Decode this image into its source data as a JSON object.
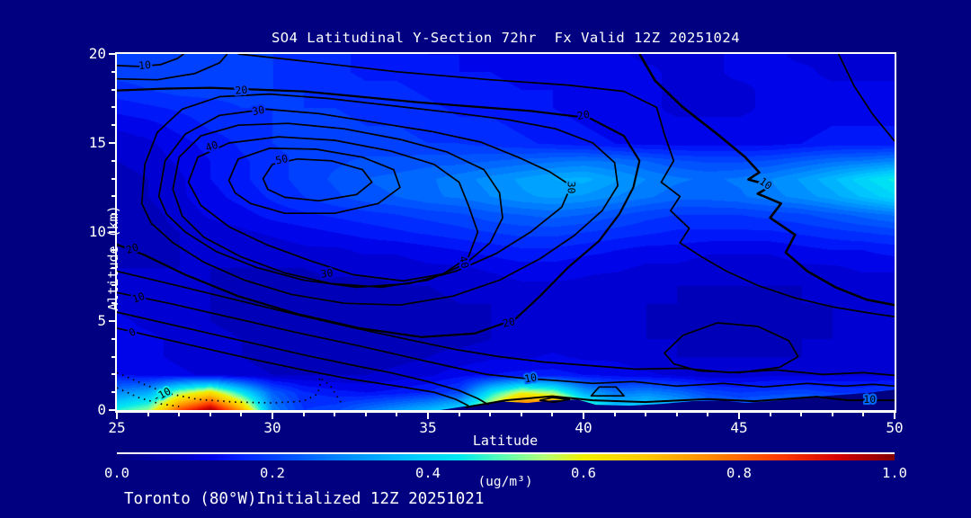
{
  "window": {
    "background": "#000080",
    "text_color": "#ffffff"
  },
  "header": {
    "title": "SO4 Latitudinal Y-Section 72hr  Fx Valid 12Z 20251024"
  },
  "footer": {
    "text": "Toronto (80°W)Initialized 12Z 20251021"
  },
  "axes": {
    "x": {
      "label": "Latitude",
      "ticks": [
        "25",
        "30",
        "35",
        "40",
        "45",
        "50"
      ],
      "min": 25,
      "max": 50,
      "minor_step": 1
    },
    "y": {
      "label": "Altitude (km)",
      "ticks": [
        "0",
        "5",
        "10",
        "15",
        "20"
      ],
      "min": 0,
      "max": 20,
      "minor_step": 1
    }
  },
  "colorbar": {
    "ticks": [
      "0.0",
      "0.2",
      "0.4",
      "0.6",
      "0.8",
      "1.0"
    ],
    "min": 0.0,
    "max": 1.0,
    "units_label": "(ug/m³)",
    "stops": [
      [
        0.0,
        "#000082"
      ],
      [
        0.07,
        "#0000b4"
      ],
      [
        0.12,
        "#0000e6"
      ],
      [
        0.16,
        "#0020ff"
      ],
      [
        0.22,
        "#0050ff"
      ],
      [
        0.3,
        "#0090ff"
      ],
      [
        0.38,
        "#00c8ff"
      ],
      [
        0.44,
        "#00e8f0"
      ],
      [
        0.5,
        "#60ffb0"
      ],
      [
        0.55,
        "#b4ff78"
      ],
      [
        0.6,
        "#f0f000"
      ],
      [
        0.68,
        "#ffc800"
      ],
      [
        0.76,
        "#ff8c00"
      ],
      [
        0.85,
        "#ff3c00"
      ],
      [
        0.93,
        "#d20000"
      ],
      [
        1.0,
        "#820000"
      ]
    ]
  },
  "contour_labels": [
    {
      "text": "10",
      "lat": 25.9,
      "alt": 19.35,
      "rot": -5
    },
    {
      "text": "20",
      "lat": 29.0,
      "alt": 17.95,
      "rot": -5
    },
    {
      "text": "30",
      "lat": 29.55,
      "alt": 16.8,
      "rot": -12
    },
    {
      "text": "40",
      "lat": 28.05,
      "alt": 14.8,
      "rot": -18
    },
    {
      "text": "50",
      "lat": 30.3,
      "alt": 14.05,
      "rot": -12
    },
    {
      "text": "20",
      "lat": 40.0,
      "alt": 16.55,
      "rot": -10
    },
    {
      "text": "30",
      "lat": 39.6,
      "alt": 12.5,
      "rot": 90
    },
    {
      "text": "10",
      "lat": 45.85,
      "alt": 12.7,
      "rot": 35
    },
    {
      "text": "20",
      "lat": 25.5,
      "alt": 9.05,
      "rot": -18
    },
    {
      "text": "10",
      "lat": 25.7,
      "alt": 6.3,
      "rot": -20
    },
    {
      "text": "0",
      "lat": 25.5,
      "alt": 4.35,
      "rot": -25
    },
    {
      "text": "-10",
      "lat": 26.45,
      "alt": 0.85,
      "rot": -28
    },
    {
      "text": "30",
      "lat": 31.75,
      "alt": 7.65,
      "rot": -8
    },
    {
      "text": "40",
      "lat": 36.15,
      "alt": 8.3,
      "rot": 78
    },
    {
      "text": "20",
      "lat": 37.6,
      "alt": 4.9,
      "rot": -12
    },
    {
      "text": "10",
      "lat": 38.3,
      "alt": 1.78,
      "rot": -10
    },
    {
      "text": "10",
      "lat": 49.2,
      "alt": 0.58,
      "rot": 0
    }
  ],
  "chart_data": {
    "type": "heatmap",
    "title": "SO4 Latitudinal Y-Section 72hr  Fx Valid 12Z 20251024",
    "xlabel": "Latitude",
    "ylabel": "Altitude (km)",
    "xlim": [
      25,
      50
    ],
    "ylim": [
      0,
      20
    ],
    "colorbar_range": [
      0.0,
      1.0
    ],
    "colorbar_units": "(ug/m³)",
    "contours": {
      "interval": 5,
      "labeled_levels": [
        -10,
        0,
        10,
        20,
        30,
        40,
        50
      ],
      "negative_linestyle": "dotted",
      "upper_maximum": {
        "lat": 31,
        "alt_km": 13,
        "peak_level": 50
      },
      "surface_hotspots": [
        {
          "lat_range": [
            26.5,
            29.5
          ],
          "alt_km_range": [
            0,
            1.5
          ],
          "peak_value": 1.0
        },
        {
          "lat_range": [
            37,
            40
          ],
          "alt_km_range": [
            0,
            1
          ],
          "peak_value": 0.95
        }
      ]
    },
    "grid": {
      "lat_start": 25,
      "lat_step": 1,
      "n_lat": 26,
      "alt_top_km": 20,
      "alt_step_km": -1,
      "n_alt": 21,
      "note": "approximate fill values (ug/m3) read from colors, rows top (20 km) to bottom (0 km)",
      "values_top_to_bottom": [
        [
          0.2,
          0.2,
          0.21,
          0.21,
          0.2,
          0.2,
          0.19,
          0.18,
          0.17,
          0.16,
          0.15,
          0.15,
          0.14,
          0.14,
          0.13,
          0.13,
          0.13,
          0.12,
          0.12,
          0.12,
          0.13,
          0.13,
          0.12,
          0.12,
          0.12,
          0.12
        ],
        [
          0.21,
          0.21,
          0.22,
          0.22,
          0.21,
          0.2,
          0.19,
          0.18,
          0.17,
          0.17,
          0.16,
          0.15,
          0.15,
          0.14,
          0.14,
          0.13,
          0.13,
          0.13,
          0.12,
          0.12,
          0.13,
          0.13,
          0.13,
          0.12,
          0.12,
          0.12
        ],
        [
          0.19,
          0.2,
          0.21,
          0.21,
          0.21,
          0.2,
          0.2,
          0.19,
          0.18,
          0.18,
          0.17,
          0.16,
          0.16,
          0.15,
          0.15,
          0.14,
          0.13,
          0.13,
          0.12,
          0.12,
          0.12,
          0.13,
          0.13,
          0.13,
          0.13,
          0.13
        ],
        [
          0.16,
          0.17,
          0.18,
          0.19,
          0.2,
          0.2,
          0.2,
          0.2,
          0.19,
          0.19,
          0.18,
          0.17,
          0.17,
          0.16,
          0.15,
          0.14,
          0.13,
          0.13,
          0.12,
          0.12,
          0.12,
          0.13,
          0.13,
          0.14,
          0.14,
          0.14
        ],
        [
          0.13,
          0.14,
          0.16,
          0.18,
          0.19,
          0.2,
          0.21,
          0.21,
          0.2,
          0.2,
          0.19,
          0.18,
          0.18,
          0.17,
          0.16,
          0.15,
          0.14,
          0.13,
          0.13,
          0.13,
          0.13,
          0.13,
          0.14,
          0.15,
          0.15,
          0.15
        ],
        [
          0.11,
          0.12,
          0.14,
          0.16,
          0.18,
          0.2,
          0.21,
          0.21,
          0.21,
          0.21,
          0.2,
          0.2,
          0.19,
          0.18,
          0.17,
          0.16,
          0.15,
          0.14,
          0.14,
          0.14,
          0.14,
          0.14,
          0.15,
          0.16,
          0.16,
          0.16
        ],
        [
          0.1,
          0.11,
          0.13,
          0.15,
          0.17,
          0.19,
          0.21,
          0.22,
          0.23,
          0.23,
          0.24,
          0.24,
          0.25,
          0.26,
          0.27,
          0.28,
          0.27,
          0.25,
          0.23,
          0.22,
          0.22,
          0.23,
          0.25,
          0.27,
          0.28,
          0.3
        ],
        [
          0.09,
          0.1,
          0.12,
          0.15,
          0.17,
          0.19,
          0.21,
          0.23,
          0.25,
          0.26,
          0.27,
          0.29,
          0.31,
          0.33,
          0.35,
          0.36,
          0.33,
          0.3,
          0.28,
          0.27,
          0.28,
          0.3,
          0.33,
          0.37,
          0.42,
          0.46
        ],
        [
          0.09,
          0.1,
          0.12,
          0.14,
          0.16,
          0.18,
          0.2,
          0.22,
          0.24,
          0.25,
          0.27,
          0.28,
          0.3,
          0.32,
          0.33,
          0.32,
          0.3,
          0.28,
          0.26,
          0.26,
          0.27,
          0.29,
          0.31,
          0.34,
          0.38,
          0.42
        ],
        [
          0.08,
          0.09,
          0.11,
          0.13,
          0.14,
          0.16,
          0.17,
          0.18,
          0.19,
          0.2,
          0.21,
          0.22,
          0.24,
          0.25,
          0.26,
          0.25,
          0.23,
          0.21,
          0.2,
          0.2,
          0.2,
          0.21,
          0.22,
          0.24,
          0.26,
          0.28
        ],
        [
          0.08,
          0.09,
          0.1,
          0.11,
          0.12,
          0.13,
          0.14,
          0.15,
          0.16,
          0.17,
          0.18,
          0.19,
          0.2,
          0.21,
          0.21,
          0.2,
          0.19,
          0.18,
          0.17,
          0.17,
          0.17,
          0.17,
          0.18,
          0.19,
          0.2,
          0.21
        ],
        [
          0.09,
          0.09,
          0.1,
          0.1,
          0.11,
          0.11,
          0.12,
          0.12,
          0.13,
          0.13,
          0.14,
          0.15,
          0.16,
          0.17,
          0.17,
          0.16,
          0.15,
          0.14,
          0.14,
          0.13,
          0.13,
          0.13,
          0.14,
          0.15,
          0.15,
          0.16
        ],
        [
          0.1,
          0.1,
          0.1,
          0.1,
          0.1,
          0.1,
          0.1,
          0.11,
          0.11,
          0.11,
          0.12,
          0.12,
          0.13,
          0.14,
          0.14,
          0.13,
          0.13,
          0.12,
          0.12,
          0.11,
          0.11,
          0.11,
          0.12,
          0.12,
          0.13,
          0.13
        ],
        [
          0.11,
          0.11,
          0.1,
          0.1,
          0.09,
          0.09,
          0.09,
          0.09,
          0.09,
          0.1,
          0.1,
          0.11,
          0.11,
          0.12,
          0.12,
          0.12,
          0.11,
          0.11,
          0.1,
          0.1,
          0.1,
          0.1,
          0.1,
          0.11,
          0.11,
          0.11
        ],
        [
          0.12,
          0.11,
          0.11,
          0.1,
          0.09,
          0.09,
          0.08,
          0.08,
          0.08,
          0.09,
          0.09,
          0.1,
          0.1,
          0.11,
          0.11,
          0.11,
          0.11,
          0.1,
          0.1,
          0.09,
          0.09,
          0.09,
          0.1,
          0.1,
          0.1,
          0.1
        ],
        [
          0.13,
          0.12,
          0.11,
          0.1,
          0.09,
          0.08,
          0.08,
          0.08,
          0.08,
          0.08,
          0.09,
          0.09,
          0.1,
          0.1,
          0.11,
          0.11,
          0.1,
          0.1,
          0.09,
          0.09,
          0.09,
          0.09,
          0.09,
          0.1,
          0.1,
          0.1
        ],
        [
          0.13,
          0.13,
          0.12,
          0.11,
          0.1,
          0.09,
          0.08,
          0.08,
          0.08,
          0.08,
          0.09,
          0.09,
          0.1,
          0.11,
          0.11,
          0.11,
          0.11,
          0.1,
          0.1,
          0.09,
          0.09,
          0.09,
          0.1,
          0.1,
          0.1,
          0.1
        ],
        [
          0.14,
          0.13,
          0.12,
          0.11,
          0.1,
          0.09,
          0.09,
          0.08,
          0.08,
          0.09,
          0.1,
          0.11,
          0.12,
          0.12,
          0.13,
          0.12,
          0.12,
          0.11,
          0.1,
          0.1,
          0.1,
          0.1,
          0.1,
          0.11,
          0.11,
          0.11
        ],
        [
          0.15,
          0.14,
          0.13,
          0.12,
          0.11,
          0.1,
          0.1,
          0.1,
          0.1,
          0.11,
          0.12,
          0.14,
          0.15,
          0.16,
          0.16,
          0.15,
          0.14,
          0.13,
          0.12,
          0.11,
          0.11,
          0.12,
          0.12,
          0.12,
          0.12,
          0.12
        ],
        [
          0.3,
          0.35,
          0.55,
          0.65,
          0.45,
          0.25,
          0.18,
          0.16,
          0.15,
          0.16,
          0.18,
          0.22,
          0.45,
          0.6,
          0.55,
          0.35,
          0.28,
          0.3,
          0.27,
          0.22,
          0.2,
          0.21,
          0.22,
          0.2,
          0.2,
          0.22
        ],
        [
          0.48,
          0.55,
          0.85,
          1.0,
          0.75,
          0.3,
          0.2,
          0.22,
          0.28,
          0.33,
          0.38,
          0.45,
          0.65,
          0.92,
          0.95,
          0.6,
          0.42,
          0.45,
          0.4,
          0.32,
          0.28,
          0.32,
          0.35,
          0.32,
          0.35,
          0.4
        ]
      ]
    },
    "terrain": {
      "description": "surface terrain silhouette (background navy) rising toward 50N",
      "points_lat_altkm": [
        [
          35.4,
          0
        ],
        [
          36.5,
          0.3
        ],
        [
          37.3,
          0.5
        ],
        [
          38.2,
          0.4
        ],
        [
          39.0,
          0.55
        ],
        [
          39.8,
          0.6
        ],
        [
          40.4,
          0.3
        ],
        [
          41.5,
          0.25
        ],
        [
          42.5,
          0.35
        ],
        [
          43.5,
          0.5
        ],
        [
          44.5,
          0.55
        ],
        [
          45.2,
          0.4
        ],
        [
          46.0,
          0.5
        ],
        [
          47.0,
          0.65
        ],
        [
          47.8,
          0.8
        ],
        [
          48.6,
          0.9
        ],
        [
          49.3,
          1.0
        ],
        [
          50,
          1.15
        ]
      ]
    }
  }
}
